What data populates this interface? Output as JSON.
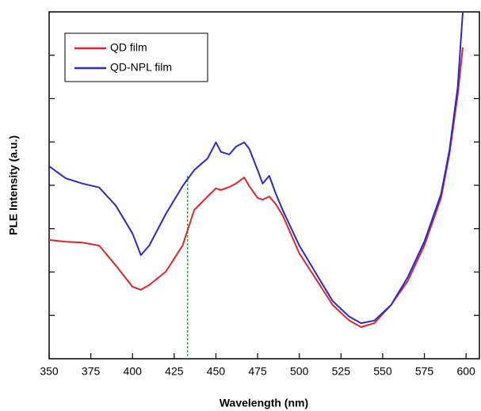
{
  "chart_data": {
    "type": "line",
    "x_label": "Wavelength (nm)",
    "y_label": "PLE Intensity (a.u.)",
    "x": [
      350,
      360,
      370,
      380,
      390,
      400,
      405,
      410,
      420,
      430,
      437,
      445,
      450,
      453,
      458,
      462,
      467,
      470,
      475,
      478,
      482,
      486,
      490,
      500,
      510,
      520,
      530,
      537,
      545,
      555,
      565,
      575,
      585,
      590,
      595,
      598
    ],
    "series": [
      {
        "name": "QD film",
        "color": "#e0262b",
        "values": [
          2.74,
          2.7,
          2.68,
          2.61,
          2.15,
          1.66,
          1.59,
          1.7,
          2.01,
          2.61,
          3.43,
          3.74,
          3.93,
          3.89,
          3.96,
          4.04,
          4.18,
          3.98,
          3.71,
          3.67,
          3.74,
          3.56,
          3.31,
          2.43,
          1.84,
          1.24,
          0.88,
          0.73,
          0.82,
          1.24,
          1.79,
          2.61,
          3.71,
          4.71,
          6.08,
          7.18
        ]
      },
      {
        "name": "QD-NPL film",
        "color": "#2a2ad0",
        "values": [
          4.44,
          4.16,
          4.04,
          3.95,
          3.53,
          2.89,
          2.39,
          2.61,
          3.34,
          3.98,
          4.35,
          4.62,
          4.99,
          4.77,
          4.71,
          4.89,
          4.99,
          4.84,
          4.35,
          4.04,
          4.22,
          3.8,
          3.43,
          2.61,
          1.97,
          1.33,
          0.97,
          0.82,
          0.88,
          1.24,
          1.88,
          2.7,
          3.8,
          4.8,
          6.26,
          8.0
        ]
      }
    ],
    "xlim": [
      350,
      608
    ],
    "xticks": [
      350,
      375,
      400,
      425,
      450,
      475,
      500,
      525,
      550,
      575,
      600
    ],
    "ylim": [
      0,
      8
    ],
    "yticks": [
      1,
      2,
      3,
      4,
      5,
      6,
      7
    ],
    "ytick_labels": false,
    "vline": {
      "x": 433,
      "color": "#2a9d2a"
    },
    "legend": "upper left"
  }
}
